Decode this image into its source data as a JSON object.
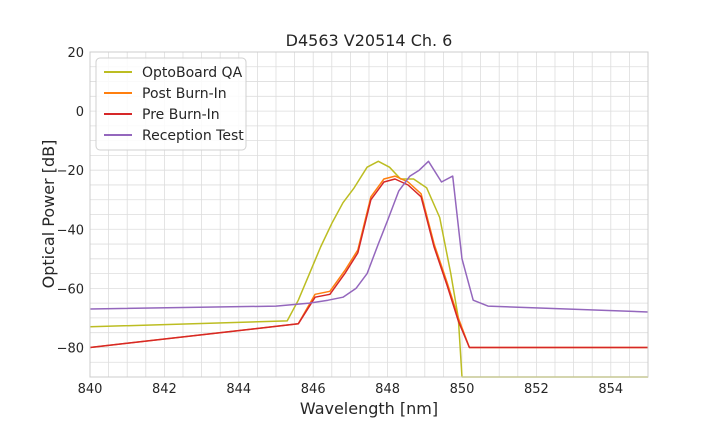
{
  "chart_data": {
    "type": "line",
    "title": "D4563 V20514 Ch. 6",
    "xlabel": "Wavelength [nm]",
    "ylabel": "Optical Power [dB]",
    "xlim": [
      840,
      855
    ],
    "ylim": [
      -90,
      20
    ],
    "xticks": [
      840,
      842,
      844,
      846,
      848,
      850,
      852,
      854
    ],
    "yticks": [
      20,
      0,
      -20,
      -40,
      -60,
      -80
    ],
    "grid": true,
    "legend_position": "top-left",
    "series": [
      {
        "name": "OptoBoard QA",
        "color": "#bcbd22",
        "x": [
          840,
          845.3,
          845.6,
          845.9,
          846.2,
          846.5,
          846.8,
          847.1,
          847.45,
          847.75,
          848.05,
          848.35,
          848.7,
          849.05,
          849.4,
          849.7,
          849.9,
          850.0,
          855
        ],
        "y": [
          -73,
          -71,
          -64,
          -55,
          -46,
          -38,
          -31,
          -26,
          -19,
          -17,
          -19,
          -23,
          -23,
          -26,
          -36,
          -55,
          -70,
          -90,
          -90
        ]
      },
      {
        "name": "Post Burn-In",
        "color": "#ff7f0e",
        "x": [
          840,
          845.6,
          846.05,
          846.45,
          846.85,
          847.2,
          847.55,
          847.9,
          848.2,
          848.55,
          848.9,
          849.25,
          849.6,
          849.9,
          850.2,
          855
        ],
        "y": [
          -80,
          -72,
          -62,
          -61,
          -54,
          -47,
          -29,
          -23,
          -22,
          -24,
          -28,
          -45,
          -58,
          -70,
          -80,
          -80
        ]
      },
      {
        "name": "Pre Burn-In",
        "color": "#d62728",
        "x": [
          840,
          845.6,
          846.05,
          846.45,
          846.85,
          847.2,
          847.55,
          847.9,
          848.2,
          848.55,
          848.9,
          849.25,
          849.6,
          849.9,
          850.2,
          855
        ],
        "y": [
          -80,
          -72,
          -63,
          -62,
          -55,
          -48,
          -30,
          -24,
          -23,
          -25,
          -29,
          -46,
          -59,
          -71,
          -80,
          -80
        ]
      },
      {
        "name": "Reception Test",
        "color": "#9467bd",
        "x": [
          840,
          845.0,
          845.9,
          846.4,
          846.8,
          847.15,
          847.45,
          847.75,
          848.0,
          848.3,
          848.6,
          848.85,
          849.1,
          849.45,
          849.75,
          850.0,
          850.3,
          850.7,
          855
        ],
        "y": [
          -67,
          -66,
          -65,
          -64,
          -63,
          -60,
          -55,
          -45,
          -37,
          -27,
          -22,
          -20,
          -17,
          -24,
          -22,
          -50,
          -64,
          -66,
          -68
        ]
      }
    ]
  }
}
